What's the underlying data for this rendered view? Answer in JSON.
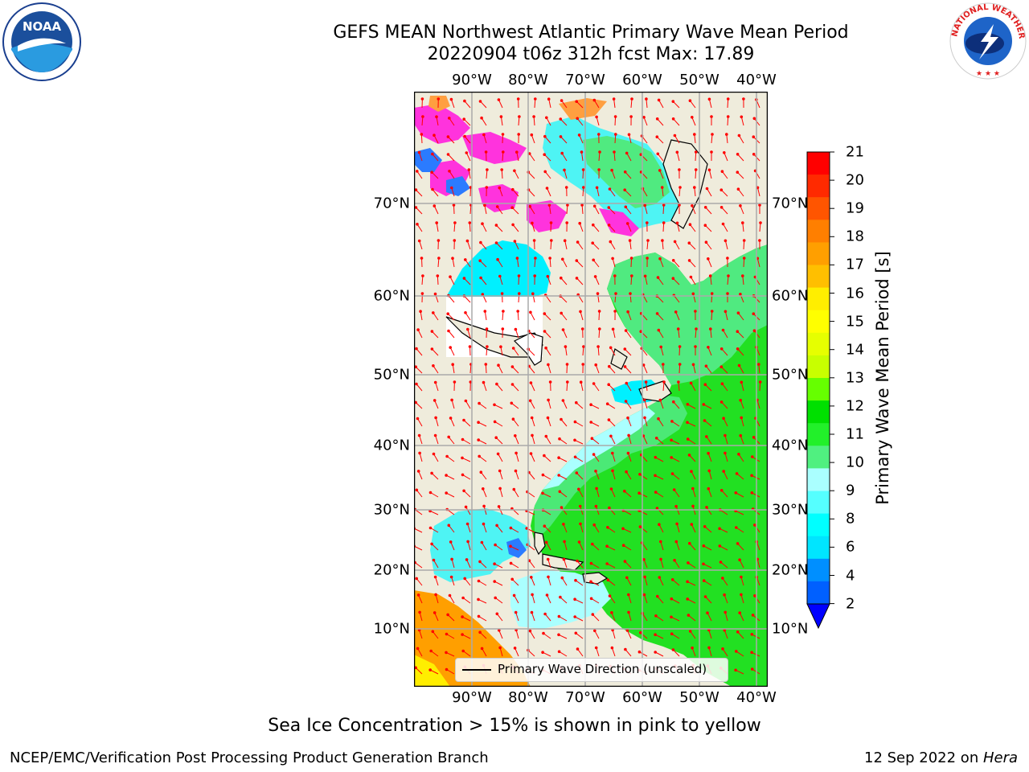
{
  "header": {
    "title_line1": "GEFS MEAN Northwest Atlantic Primary Wave Mean Period",
    "title_line2": "20220904 t06z 312h fcst   Max: 17.89"
  },
  "logos": {
    "left": {
      "name": "noaa-logo",
      "text": "NOAA"
    },
    "right": {
      "name": "nws-logo",
      "text": "NATIONAL WEATHER SERVICE"
    }
  },
  "map": {
    "lon_labels": [
      "90°W",
      "80°W",
      "70°W",
      "60°W",
      "50°W",
      "40°W"
    ],
    "lat_labels": [
      "70°N",
      "60°N",
      "50°N",
      "40°N",
      "30°N",
      "20°N",
      "10°N"
    ],
    "legend_label": "Primary Wave Direction (unscaled)",
    "colors": {
      "land": "#efecdc",
      "ocean_green": "#22e022",
      "ocean_cyan": "#4ef4f4",
      "ice_pink": "#ff33dd",
      "arrow": "#ff0000"
    }
  },
  "colorbar": {
    "title": "Primary Wave Mean Period [s]",
    "ticks": [
      "21",
      "20",
      "19",
      "18",
      "17",
      "16",
      "15",
      "14",
      "13",
      "12",
      "11",
      "10",
      "9",
      "8",
      "6",
      "4",
      "2"
    ],
    "colors_top_to_bottom": [
      "#ff0000",
      "#ff2a00",
      "#ff5500",
      "#ff7f00",
      "#ff9f00",
      "#ffbf00",
      "#ffee00",
      "#ffff00",
      "#e6ff00",
      "#c8ff00",
      "#66ff00",
      "#00e000",
      "#22f02a",
      "#50f080",
      "#aaffff",
      "#55ffff",
      "#00ffff",
      "#00e5ff",
      "#008fff",
      "#0060ff"
    ],
    "extend_color": "#0000ff"
  },
  "note": "Sea Ice Concentration > 15% is shown in pink to yellow",
  "footer": {
    "left": "NCEP/EMC/Verification Post Processing Product Generation Branch",
    "right_prefix": "12 Sep 2022 on ",
    "right_machine": "Hera"
  }
}
